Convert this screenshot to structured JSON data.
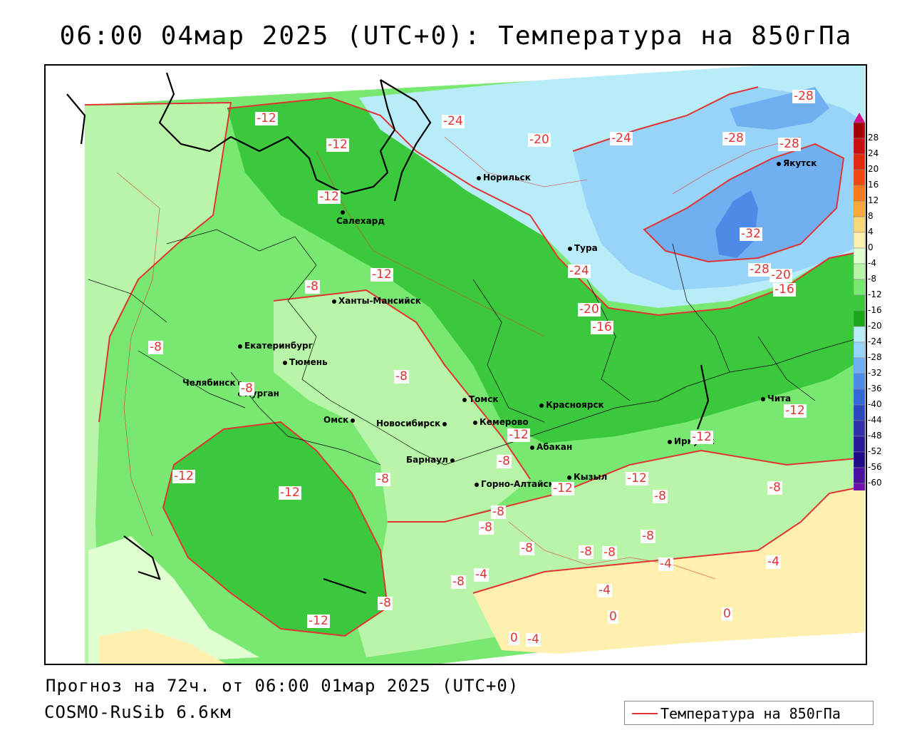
{
  "title": "06:00 04мар 2025 (UTC+0): Температура на 850гПа",
  "footer": {
    "forecast": "Прогноз на 72ч. от 06:00 01мар 2025 (UTC+0)",
    "model": "COSMO-RuSib 6.6км"
  },
  "legend": {
    "label": "Температура на 850гПа",
    "line_color": "#e23333"
  },
  "scale": {
    "labels": [
      "28",
      "24",
      "20",
      "16",
      "12",
      "8",
      "4",
      "0",
      "-4",
      "-8",
      "-12",
      "-16",
      "-20",
      "-24",
      "-28",
      "-32",
      "-36",
      "-40",
      "-44",
      "-48",
      "-52",
      "-56",
      "-60"
    ],
    "colors": [
      "#a00000",
      "#c81010",
      "#e02a10",
      "#f04a10",
      "#f87a18",
      "#f8a83a",
      "#f8d878",
      "#fff0b0",
      "#e0ffd0",
      "#b8f5a8",
      "#78e870",
      "#3cc83c",
      "#18a818",
      "#b8ecf8",
      "#98d4f8",
      "#70b0f0",
      "#4c8ce8",
      "#3468d8",
      "#2c48c0",
      "#3030a8",
      "#281c98",
      "#200c88",
      "#4a10a0",
      "#7010a8"
    ]
  },
  "cities": [
    {
      "name": "Норильск"
    },
    {
      "name": "Якутск"
    },
    {
      "name": "Салехард"
    },
    {
      "name": "Тура"
    },
    {
      "name": "Ханты-Мансийск"
    },
    {
      "name": "Екатеринбург"
    },
    {
      "name": "Тюмень"
    },
    {
      "name": "Челябинск"
    },
    {
      "name": "Курган"
    },
    {
      "name": "Омск"
    },
    {
      "name": "Новосибирск"
    },
    {
      "name": "Томск"
    },
    {
      "name": "Кемерово"
    },
    {
      "name": "Красноярск"
    },
    {
      "name": "Абакан"
    },
    {
      "name": "Барнаул"
    },
    {
      "name": "Горно-Алтайск"
    },
    {
      "name": "Кызыл"
    },
    {
      "name": "Иркутск"
    },
    {
      "name": "Чита"
    }
  ],
  "isolines": [
    {
      "value": "-12"
    },
    {
      "value": "-12"
    },
    {
      "value": "-12"
    },
    {
      "value": "-24"
    },
    {
      "value": "-20"
    },
    {
      "value": "-24"
    },
    {
      "value": "-28"
    },
    {
      "value": "-28"
    },
    {
      "value": "-28"
    },
    {
      "value": "-32"
    },
    {
      "value": "-24"
    },
    {
      "value": "-20"
    },
    {
      "value": "-16"
    },
    {
      "value": "-28"
    },
    {
      "value": "-20"
    },
    {
      "value": "-16"
    },
    {
      "value": "-12"
    },
    {
      "value": "-8"
    },
    {
      "value": "-8"
    },
    {
      "value": "-8"
    },
    {
      "value": "-12"
    },
    {
      "value": "-12"
    },
    {
      "value": "-12"
    },
    {
      "value": "-12"
    },
    {
      "value": "-12"
    },
    {
      "value": "-12"
    },
    {
      "value": "-8"
    },
    {
      "value": "-8"
    },
    {
      "value": "-8"
    },
    {
      "value": "-12"
    },
    {
      "value": "-8"
    },
    {
      "value": "-8"
    },
    {
      "value": "-8"
    },
    {
      "value": "-8"
    },
    {
      "value": "-8"
    },
    {
      "value": "-8"
    },
    {
      "value": "-8"
    },
    {
      "value": "-8"
    },
    {
      "value": "-4"
    },
    {
      "value": "-4"
    },
    {
      "value": "-4"
    },
    {
      "value": "-4"
    },
    {
      "value": "0"
    },
    {
      "value": "0"
    },
    {
      "value": "0"
    },
    {
      "value": "-4"
    },
    {
      "value": "-12"
    },
    {
      "value": "-8"
    },
    {
      "value": "-8"
    }
  ]
}
